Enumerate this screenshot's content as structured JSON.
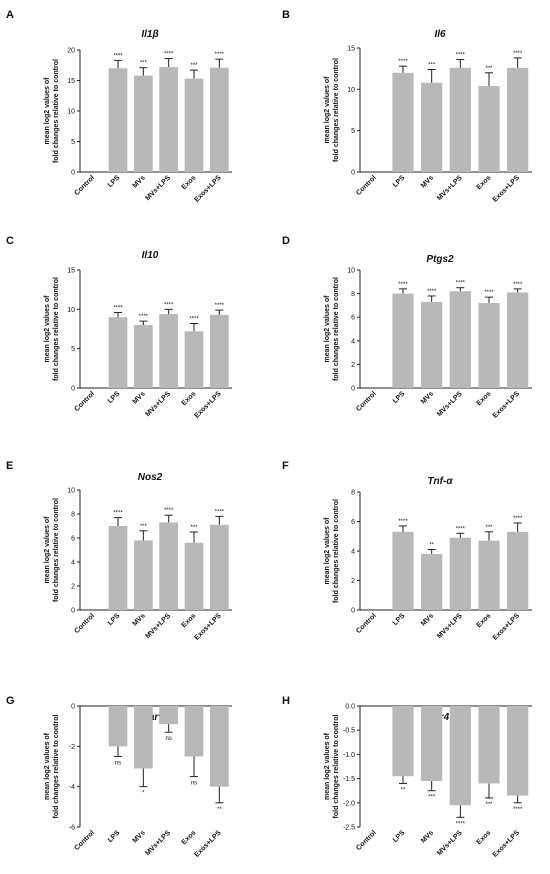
{
  "chart_data": [
    {
      "panel": "A",
      "type": "bar",
      "title": "Il1β",
      "ylabel": [
        "mean log2 values of",
        "fold changes relative to control"
      ],
      "categories": [
        "Control",
        "LPS",
        "MVs",
        "MVs+LPS",
        "Exos",
        "Exos+LPS"
      ],
      "values": [
        0,
        17.0,
        15.8,
        17.2,
        15.3,
        17.1
      ],
      "errors": [
        0,
        1.3,
        1.3,
        1.4,
        1.4,
        1.4
      ],
      "significance": [
        "",
        "****",
        "***",
        "****",
        "***",
        "****"
      ],
      "ylim": [
        0,
        20
      ],
      "yticks": [
        0,
        5,
        10,
        15,
        20
      ]
    },
    {
      "panel": "B",
      "type": "bar",
      "title": "Il6",
      "ylabel": [
        "mean log2 values of",
        "fold changes relative to control"
      ],
      "categories": [
        "Control",
        "LPS",
        "MVs",
        "MVs+LPS",
        "Exos",
        "Exos+LPS"
      ],
      "values": [
        0,
        12.0,
        10.8,
        12.6,
        10.4,
        12.6
      ],
      "errors": [
        0,
        0.8,
        1.6,
        1.0,
        1.6,
        1.2
      ],
      "significance": [
        "",
        "****",
        "***",
        "****",
        "***",
        "****"
      ],
      "ylim": [
        0,
        15
      ],
      "yticks": [
        0,
        5,
        10,
        15
      ]
    },
    {
      "panel": "C",
      "type": "bar",
      "title": "Il10",
      "ylabel": [
        "mean log2 values of",
        "fold changes relative to control"
      ],
      "categories": [
        "Control",
        "LPS",
        "MVs",
        "MVs+LPS",
        "Exos",
        "Exos+LPS"
      ],
      "values": [
        0,
        9.0,
        8.0,
        9.4,
        7.2,
        9.3
      ],
      "errors": [
        0,
        0.6,
        0.5,
        0.6,
        1.0,
        0.6
      ],
      "significance": [
        "",
        "****",
        "****",
        "****",
        "****",
        "****"
      ],
      "ylim": [
        0,
        15
      ],
      "yticks": [
        0,
        5,
        10,
        15
      ]
    },
    {
      "panel": "D",
      "type": "bar",
      "title": "Ptgs2",
      "ylabel": [
        "mean log2 values of",
        "fold changes relative to control"
      ],
      "categories": [
        "Control",
        "LPS",
        "MVs",
        "MVs+LPS",
        "Exos",
        "Exos+LPS"
      ],
      "values": [
        0,
        8.0,
        7.3,
        8.2,
        7.2,
        8.1
      ],
      "errors": [
        0,
        0.4,
        0.5,
        0.3,
        0.5,
        0.3
      ],
      "significance": [
        "",
        "****",
        "****",
        "****",
        "****",
        "****"
      ],
      "ylim": [
        0,
        10
      ],
      "yticks": [
        0,
        2,
        4,
        6,
        8,
        10
      ]
    },
    {
      "panel": "E",
      "type": "bar",
      "title": "Nos2",
      "ylabel": [
        "mean log2 values of",
        "fold changes relative to control"
      ],
      "categories": [
        "Control",
        "LPS",
        "MVs",
        "MVs+LPS",
        "Exos",
        "Exos+LPS"
      ],
      "values": [
        0,
        7.0,
        5.8,
        7.3,
        5.6,
        7.1
      ],
      "errors": [
        0,
        0.7,
        0.8,
        0.6,
        0.9,
        0.7
      ],
      "significance": [
        "",
        "****",
        "***",
        "****",
        "***",
        "****"
      ],
      "ylim": [
        0,
        10
      ],
      "yticks": [
        0,
        2,
        4,
        6,
        8,
        10
      ]
    },
    {
      "panel": "F",
      "type": "bar",
      "title": "Tnf-α",
      "ylabel": [
        "mean log2 values of",
        "fold changes relative to control"
      ],
      "categories": [
        "Control",
        "LPS",
        "MVs",
        "MVs+LPS",
        "Exos",
        "Exos+LPS"
      ],
      "values": [
        0,
        5.3,
        3.8,
        4.9,
        4.7,
        5.3
      ],
      "errors": [
        0,
        0.4,
        0.3,
        0.3,
        0.6,
        0.6
      ],
      "significance": [
        "",
        "****",
        "**",
        "****",
        "***",
        "****"
      ],
      "ylim": [
        0,
        8
      ],
      "yticks": [
        0,
        2,
        4,
        6,
        8
      ]
    },
    {
      "panel": "G",
      "type": "bar",
      "title": "Pparγ",
      "ylabel": [
        "mean log2 values of",
        "fold changes relative to control"
      ],
      "categories": [
        "Control",
        "LPS",
        "MVs",
        "MVs+LPS",
        "Exos",
        "Exos+LPS"
      ],
      "values": [
        0,
        -2.0,
        -3.1,
        -0.9,
        -2.5,
        -4.0
      ],
      "errors": [
        0,
        0.5,
        0.9,
        0.4,
        1.0,
        0.8
      ],
      "significance": [
        "",
        "ns",
        "*",
        "ns",
        "ns",
        "**"
      ],
      "ylim": [
        -6,
        0
      ],
      "yticks": [
        0,
        -2,
        -4,
        -6
      ]
    },
    {
      "panel": "H",
      "type": "bar",
      "title": "Tlr4",
      "ylabel": [
        "mean log2 values of",
        "fold changes relative to control"
      ],
      "categories": [
        "Control",
        "LPS",
        "MVs",
        "MVs+LPS",
        "Exos",
        "Exos+LPS"
      ],
      "values": [
        0,
        -1.45,
        -1.55,
        -2.05,
        -1.6,
        -1.85
      ],
      "errors": [
        0,
        0.15,
        0.2,
        0.25,
        0.3,
        0.15
      ],
      "significance": [
        "",
        "**",
        "***",
        "****",
        "***",
        "****"
      ],
      "ylim": [
        -2.5,
        0
      ],
      "yticks": [
        0.0,
        -0.5,
        -1.0,
        -1.5,
        -2.0,
        -2.5
      ],
      "ytick_decimals": 1
    }
  ]
}
